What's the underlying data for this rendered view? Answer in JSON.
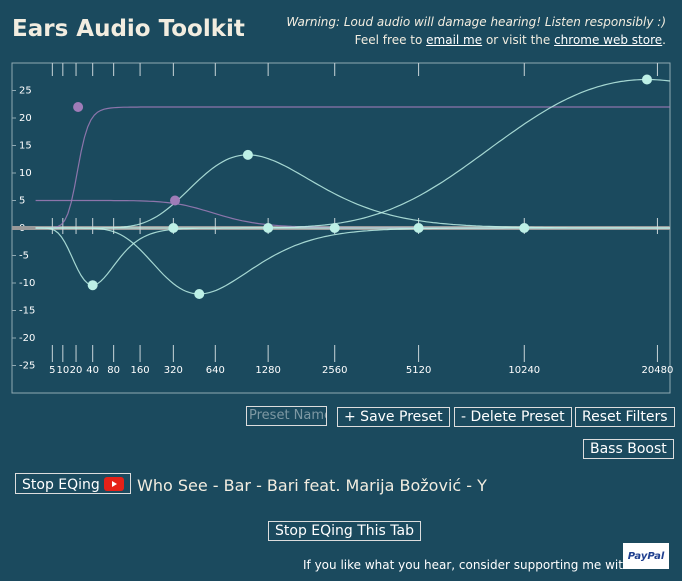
{
  "header": {
    "title": "Ears Audio Toolkit",
    "warning": "Warning: Loud audio will damage hearing! Listen responsibly :)",
    "invite": [
      "Feel free to ",
      "email me",
      " or visit the ",
      "chrome web store",
      "."
    ]
  },
  "chart_data": {
    "type": "eq",
    "xscale": "cube-root",
    "xlim": [
      0,
      21700
    ],
    "ylim": [
      -30,
      30
    ],
    "xticks": [
      5,
      10,
      20,
      40,
      80,
      160,
      320,
      640,
      1280,
      2560,
      5120,
      10240,
      20480
    ],
    "yticks": [
      25,
      20,
      15,
      10,
      5,
      0,
      -5,
      -10,
      -15,
      -20,
      -25
    ],
    "filters": [
      {
        "kind": "highshelf",
        "freq": 22,
        "gain": 22,
        "color": "#a07cb8"
      },
      {
        "kind": "lowshelf",
        "freq": 330,
        "gain": 5,
        "color": "#a07cb8"
      },
      {
        "kind": "peaking",
        "freq": 40,
        "gain": -10.4,
        "color": "#bdf0e6"
      },
      {
        "kind": "peaking",
        "freq": 320,
        "gain": 0,
        "color": "#bdf0e6"
      },
      {
        "kind": "peaking",
        "freq": 500,
        "gain": -12,
        "color": "#bdf0e6"
      },
      {
        "kind": "peaking",
        "freq": 1000,
        "gain": 13.3,
        "color": "#bdf0e6"
      },
      {
        "kind": "peaking",
        "freq": 1280,
        "gain": 0,
        "color": "#bdf0e6"
      },
      {
        "kind": "peaking",
        "freq": 2560,
        "gain": 0,
        "color": "#bdf0e6"
      },
      {
        "kind": "peaking",
        "freq": 5120,
        "gain": 0,
        "color": "#bdf0e6"
      },
      {
        "kind": "peaking",
        "freq": 10240,
        "gain": 0,
        "color": "#bdf0e6"
      },
      {
        "kind": "peaking",
        "freq": 19500,
        "gain": 27,
        "color": "#bdf0e6"
      }
    ]
  },
  "controls": {
    "preset_placeholder": "Preset Name",
    "save": "+ Save Preset",
    "delete": "- Delete Preset",
    "reset": "Reset Filters",
    "bass": "Bass Boost",
    "stop": "Stop EQing",
    "track": "Who See - Bar - Bari feat. Marija Božović - Y",
    "stop_tab": "Stop EQing This Tab"
  },
  "footer": {
    "text": "If you like what you hear, consider supporting me with",
    "paypal": "PayPal"
  }
}
